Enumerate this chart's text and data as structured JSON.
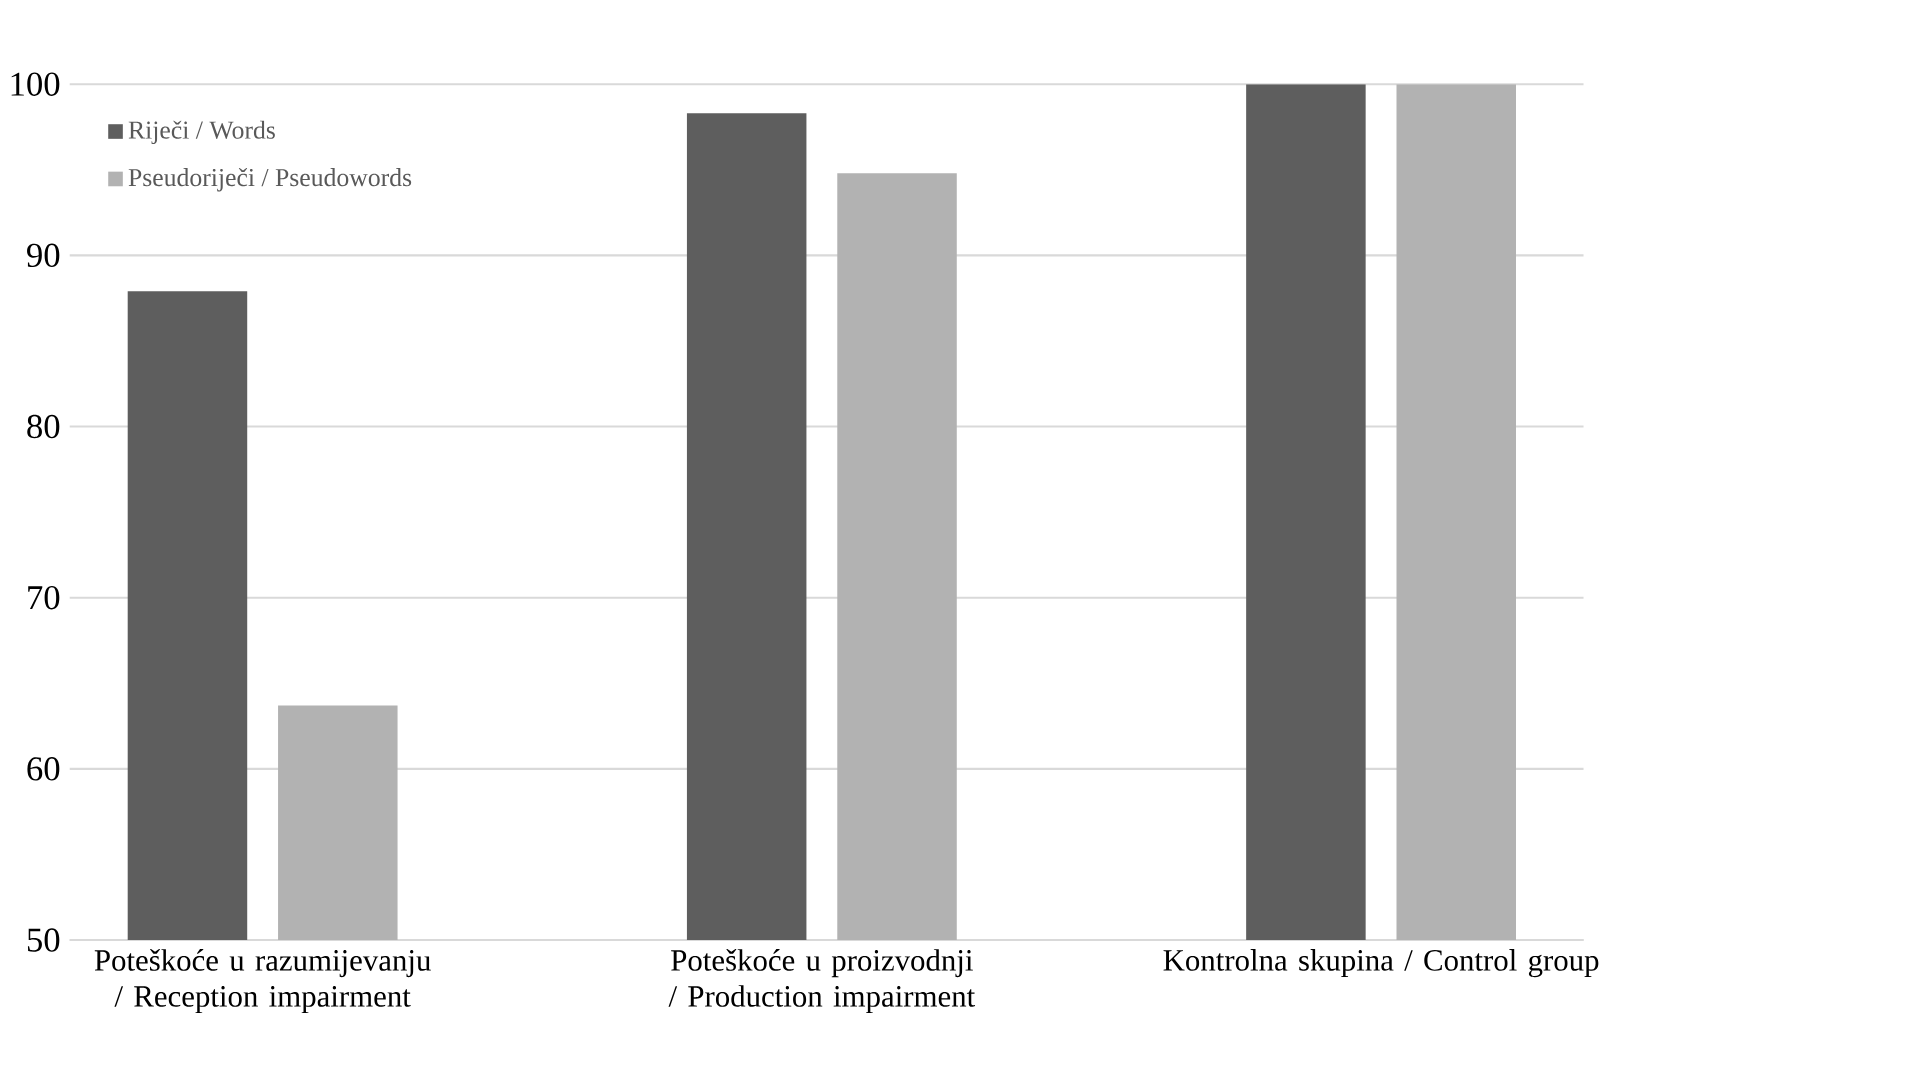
{
  "chart_data": {
    "type": "bar",
    "categories": [
      "Poteškoće u razumijevanju / Reception impairment",
      "Poteškoće u proizvodnji / Production impairment",
      "Kontrolna skupina / Control group"
    ],
    "series": [
      {
        "name": "Riječi / Words",
        "color": "#5e5e5e",
        "values": [
          87.9,
          98.3,
          100
        ]
      },
      {
        "name": "Pseudoriječi / Pseudowords",
        "color": "#b2b2b2",
        "values": [
          63.7,
          94.8,
          100
        ]
      }
    ],
    "ylim": [
      50,
      100
    ],
    "yticks": [
      50,
      60,
      70,
      80,
      90,
      100
    ],
    "grid": "y",
    "legend": "top left"
  }
}
